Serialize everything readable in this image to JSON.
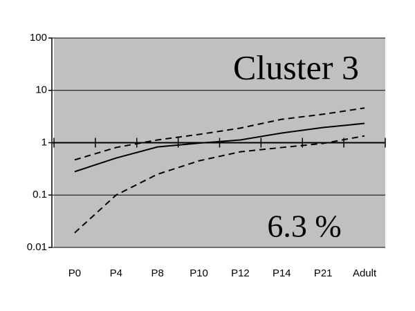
{
  "chart_data": {
    "type": "line",
    "annotations": [
      "Cluster 3",
      "6.3 %"
    ],
    "categories": [
      "P0",
      "P4",
      "P8",
      "P10",
      "P12",
      "P14",
      "P21",
      "Adult"
    ],
    "series": [
      {
        "color": "#000000",
        "dashed": false,
        "values": [
          0.28,
          0.51,
          0.83,
          0.98,
          1.13,
          1.53,
          1.95,
          2.34
        ]
      },
      {
        "color": "#000000",
        "dashed": true,
        "values": [
          0.47,
          0.81,
          1.13,
          1.44,
          1.9,
          2.8,
          3.5,
          4.6
        ]
      },
      {
        "color": "#000000",
        "dashed": true,
        "values": [
          0.019,
          0.1,
          0.25,
          0.45,
          0.67,
          0.81,
          0.97,
          1.35
        ]
      }
    ],
    "ylim": [
      0.01,
      100
    ],
    "yticks": [
      0.01,
      0.1,
      1,
      10,
      100
    ],
    "log_y": true,
    "grid": true,
    "background": "#c0c0c0"
  }
}
